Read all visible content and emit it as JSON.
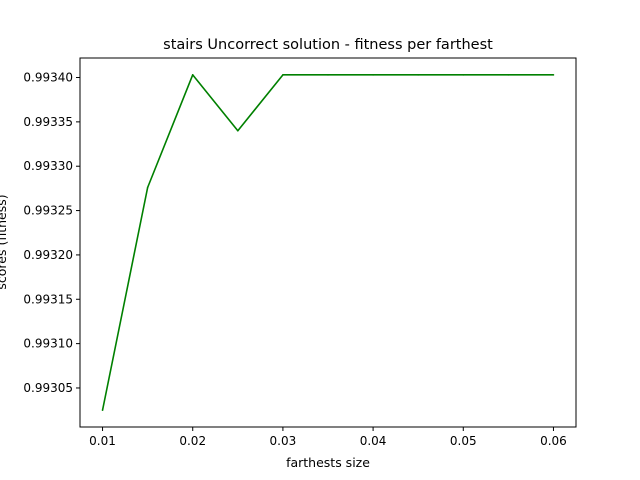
{
  "chart_data": {
    "type": "line",
    "title": "stairs Uncorrect solution - fitness per farthest",
    "xlabel": "farthests size",
    "ylabel": "scores (fitness)",
    "x": [
      0.01,
      0.015,
      0.02,
      0.025,
      0.03,
      0.035,
      0.04,
      0.045,
      0.05,
      0.055,
      0.06
    ],
    "series": [
      {
        "values": [
          0.993025,
          0.993276,
          0.993403,
          0.99334,
          0.993403,
          0.993403,
          0.993403,
          0.993403,
          0.993403,
          0.993403,
          0.993403
        ],
        "color": "#008000"
      }
    ],
    "xticks": [
      "0.01",
      "0.02",
      "0.03",
      "0.04",
      "0.05",
      "0.06"
    ],
    "xtick_values": [
      0.01,
      0.02,
      0.03,
      0.04,
      0.05,
      0.06
    ],
    "yticks": [
      "0.99305",
      "0.99310",
      "0.99315",
      "0.99320",
      "0.99325",
      "0.99330",
      "0.99335",
      "0.99340"
    ],
    "ytick_values": [
      0.99305,
      0.9931,
      0.99315,
      0.9932,
      0.99325,
      0.9933,
      0.99335,
      0.9934
    ],
    "xlim": [
      0.0075,
      0.0625
    ],
    "ylim": [
      0.993006,
      0.993422
    ],
    "grid": false,
    "legend": "none"
  }
}
